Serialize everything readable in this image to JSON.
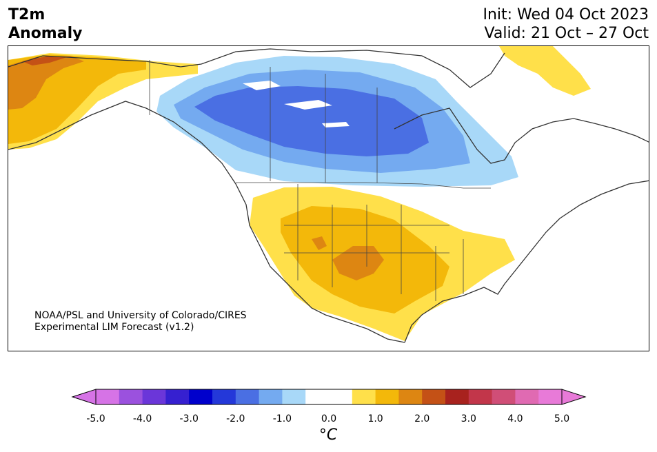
{
  "header": {
    "title_line1": "T2m",
    "title_line2": "Anomaly",
    "init_text": "Init: Wed 04 Oct 2023",
    "valid_text": "Valid: 21 Oct – 27 Oct"
  },
  "map": {
    "region": "North America",
    "credit_line1": "NOAA/PSL and University of Colorado/CIRES",
    "credit_line2": "Experimental LIM Forecast (v1.2)"
  },
  "colorbar": {
    "unit_label": "°C",
    "tick_labels": [
      "-5.0",
      "-4.0",
      "-3.0",
      "-2.0",
      "-1.0",
      "0.0",
      "1.0",
      "2.0",
      "3.0",
      "4.0",
      "5.0"
    ],
    "colors": [
      "#d673e6",
      "#9b51de",
      "#6b36d9",
      "#3620d0",
      "#0000cc",
      "#2438d9",
      "#4a6fe3",
      "#74aaf0",
      "#a8d8f8",
      "#ffffff",
      "#ffffff",
      "#ffe04a",
      "#f3b80a",
      "#dd8612",
      "#c45116",
      "#a8221e",
      "#c2364a",
      "#d04e77",
      "#e06ab2",
      "#e87ad8"
    ],
    "extend_low_color": "#d673e6",
    "extend_high_color": "#e87ad8"
  }
}
